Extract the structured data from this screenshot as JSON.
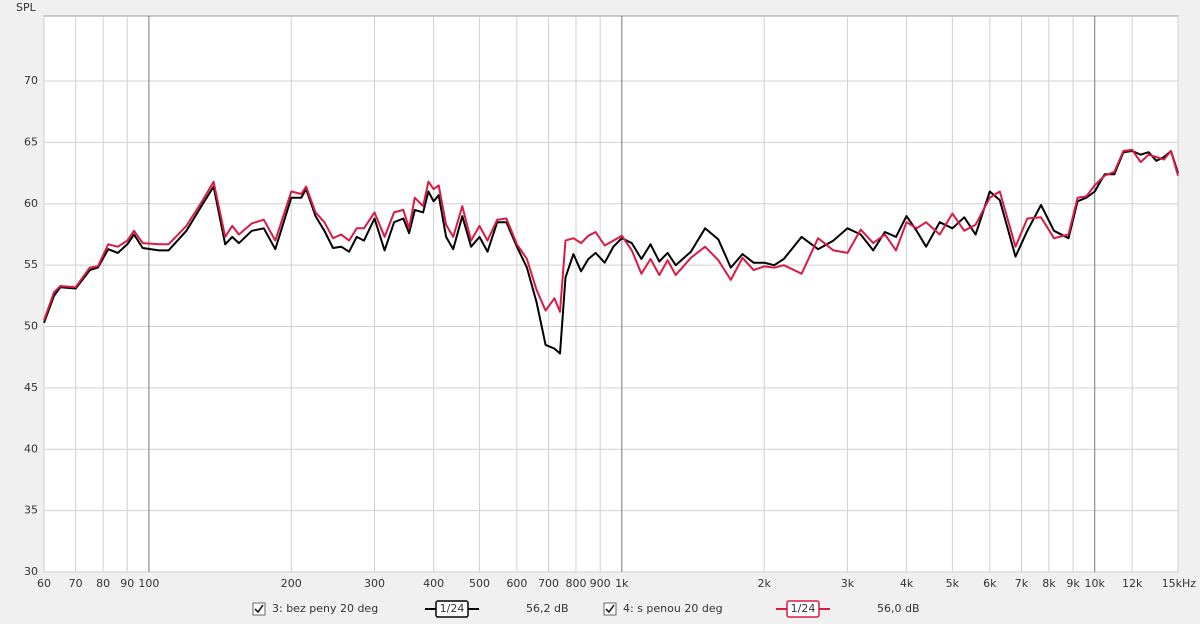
{
  "chart_data": {
    "type": "line",
    "y_label": "SPL",
    "xscale": "log",
    "grid": true,
    "xlim": [
      60,
      15000
    ],
    "ylim": [
      30,
      75.3
    ],
    "yticks": [
      30,
      35,
      40,
      45,
      50,
      55,
      60,
      65,
      70
    ],
    "xticks": [
      60,
      70,
      80,
      90,
      100,
      200,
      300,
      400,
      500,
      600,
      700,
      800,
      900,
      {
        "value": 1000,
        "label": "1k"
      },
      {
        "value": 2000,
        "label": "2k"
      },
      {
        "value": 3000,
        "label": "3k"
      },
      {
        "value": 4000,
        "label": "4k"
      },
      {
        "value": 5000,
        "label": "5k"
      },
      {
        "value": 6000,
        "label": "6k"
      },
      {
        "value": 7000,
        "label": "7k"
      },
      {
        "value": 8000,
        "label": "8k"
      },
      {
        "value": 9000,
        "label": "9k"
      },
      {
        "value": 10000,
        "label": "10k"
      },
      {
        "value": 12000,
        "label": "12k"
      },
      {
        "value": 15000,
        "label": "15kHz"
      }
    ],
    "x": [
      60,
      63,
      65,
      70,
      75,
      78,
      82,
      86,
      90,
      93,
      97,
      105,
      110,
      120,
      130,
      137,
      145,
      150,
      155,
      165,
      175,
      185,
      200,
      210,
      215,
      225,
      235,
      245,
      255,
      265,
      275,
      285,
      300,
      315,
      330,
      345,
      355,
      365,
      380,
      390,
      400,
      410,
      425,
      440,
      460,
      480,
      500,
      520,
      545,
      570,
      600,
      630,
      660,
      690,
      720,
      740,
      760,
      790,
      820,
      850,
      880,
      920,
      960,
      1000,
      1050,
      1100,
      1150,
      1200,
      1250,
      1300,
      1400,
      1500,
      1600,
      1700,
      1800,
      1900,
      2000,
      2100,
      2200,
      2400,
      2600,
      2800,
      3000,
      3200,
      3400,
      3600,
      3800,
      4000,
      4200,
      4400,
      4700,
      5000,
      5300,
      5600,
      6000,
      6300,
      6800,
      7200,
      7700,
      8200,
      8800,
      9200,
      9600,
      10000,
      10500,
      11000,
      11500,
      12000,
      12500,
      13000,
      13500,
      14000,
      14500,
      15000
    ],
    "series": [
      {
        "name": "3: bez peny 20 deg",
        "smoothing": "1/24",
        "level": "56,2 dB",
        "color": "#000000",
        "values": [
          50.3,
          52.5,
          53.2,
          53.1,
          54.6,
          54.8,
          56.3,
          56.0,
          56.7,
          57.5,
          56.4,
          56.2,
          56.2,
          57.8,
          60.0,
          61.4,
          56.7,
          57.3,
          56.8,
          57.8,
          58.0,
          56.3,
          60.5,
          60.5,
          61.2,
          59.0,
          57.8,
          56.4,
          56.5,
          56.1,
          57.3,
          57.0,
          58.8,
          56.2,
          58.5,
          58.8,
          57.6,
          59.5,
          59.3,
          61.0,
          60.2,
          60.7,
          57.3,
          56.3,
          59.0,
          56.5,
          57.3,
          56.1,
          58.5,
          58.5,
          56.5,
          54.8,
          52.0,
          48.5,
          48.2,
          47.8,
          54.0,
          55.9,
          54.5,
          55.5,
          56.0,
          55.2,
          56.5,
          57.2,
          56.8,
          55.5,
          56.7,
          55.3,
          56.0,
          55.0,
          56.1,
          58.0,
          57.1,
          54.8,
          55.9,
          55.2,
          55.2,
          55.0,
          55.5,
          57.3,
          56.3,
          57.0,
          58.0,
          57.5,
          56.2,
          57.7,
          57.3,
          59.0,
          57.8,
          56.5,
          58.5,
          58.0,
          58.9,
          57.5,
          61.0,
          60.3,
          55.7,
          57.8,
          59.9,
          57.8,
          57.2,
          60.2,
          60.5,
          61.0,
          62.4,
          62.4,
          64.2,
          64.3,
          64.0,
          64.2,
          63.5,
          63.8,
          64.3,
          62.5
        ]
      },
      {
        "name": "4: s penou 20 deg",
        "smoothing": "1/24",
        "level": "56,0 dB",
        "color": "#d81b45",
        "values": [
          50.5,
          52.8,
          53.3,
          53.2,
          54.8,
          54.9,
          56.7,
          56.5,
          57.0,
          57.8,
          56.8,
          56.7,
          56.7,
          58.2,
          60.3,
          61.8,
          57.3,
          58.2,
          57.5,
          58.4,
          58.7,
          57.0,
          61.0,
          60.8,
          61.4,
          59.3,
          58.5,
          57.2,
          57.5,
          57.0,
          58.0,
          58.0,
          59.3,
          57.3,
          59.3,
          59.5,
          58.0,
          60.5,
          59.8,
          61.8,
          61.2,
          61.5,
          58.3,
          57.3,
          59.8,
          57.0,
          58.2,
          57.0,
          58.7,
          58.8,
          56.7,
          55.5,
          53.0,
          51.3,
          52.3,
          51.2,
          57.0,
          57.2,
          56.8,
          57.4,
          57.7,
          56.6,
          57.0,
          57.4,
          56.2,
          54.3,
          55.5,
          54.2,
          55.4,
          54.2,
          55.6,
          56.5,
          55.4,
          53.8,
          55.6,
          54.6,
          54.9,
          54.8,
          55.0,
          54.3,
          57.2,
          56.2,
          56.0,
          57.9,
          56.8,
          57.5,
          56.2,
          58.5,
          58.0,
          58.5,
          57.5,
          59.2,
          57.8,
          58.3,
          60.5,
          61.0,
          56.5,
          58.8,
          58.9,
          57.2,
          57.5,
          60.5,
          60.6,
          61.5,
          62.3,
          62.6,
          64.3,
          64.4,
          63.4,
          64.0,
          63.8,
          63.6,
          64.3,
          62.3
        ]
      }
    ]
  }
}
